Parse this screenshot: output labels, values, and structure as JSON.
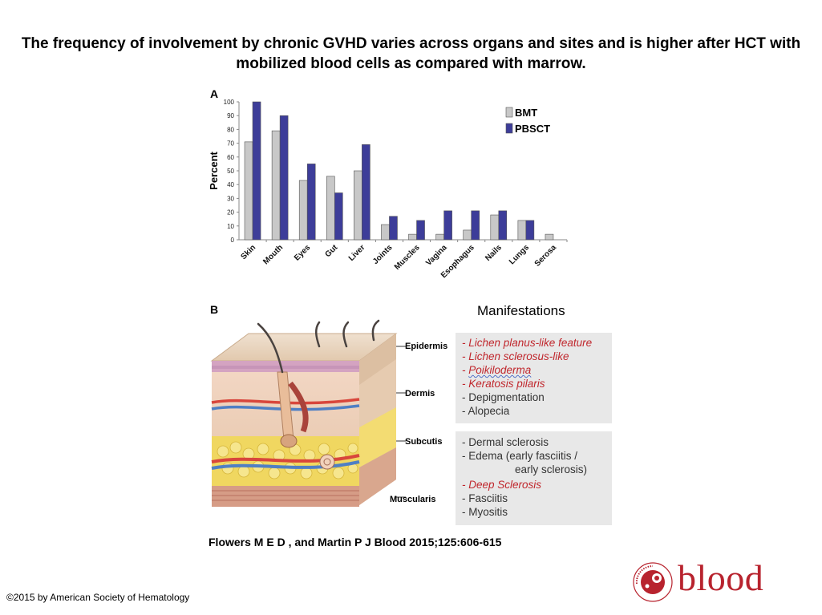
{
  "title": "The frequency of involvement by chronic GVHD varies across organs and sites and is higher after HCT with mobilized blood cells as compared with marrow.",
  "panel_a_label": "A",
  "panel_b_label": "B",
  "chart_data": {
    "type": "bar",
    "ylabel": "Percent",
    "xlabel": "",
    "ylim": [
      0,
      100
    ],
    "yticks": [
      0,
      10,
      20,
      30,
      40,
      50,
      60,
      70,
      80,
      90,
      100
    ],
    "categories": [
      "Skin",
      "Mouth",
      "Eyes",
      "Gut",
      "Liver",
      "Joints",
      "Muscles",
      "Vagina",
      "Esophagus",
      "Nails",
      "Lungs",
      "Serosa"
    ],
    "series": [
      {
        "name": "BMT",
        "color": "#c8c8c8",
        "values": [
          71,
          79,
          43,
          46,
          50,
          11,
          4,
          4,
          7,
          18,
          14,
          4
        ]
      },
      {
        "name": "PBSCT",
        "color": "#3d3d99",
        "values": [
          100,
          90,
          55,
          34,
          69,
          17,
          14,
          21,
          21,
          21,
          14,
          0
        ]
      }
    ],
    "legend_position": "top-right",
    "grid": false
  },
  "panel_b": {
    "manifestations_title": "Manifestations",
    "layers": [
      "Epidermis",
      "Dermis",
      "Subcutis",
      "Muscularis"
    ],
    "box1": [
      {
        "prefix": "- ",
        "text": "Lichen planus-like feature"
      },
      {
        "prefix": "- ",
        "text": "Lichen sclerosus-like"
      },
      {
        "prefix": "- ",
        "text": "Poikiloderma"
      },
      {
        "prefix": "- ",
        "text": "Keratosis pilaris"
      },
      {
        "prefix": "- ",
        "text": "Depigmentation"
      },
      {
        "prefix": "- ",
        "text": "Alopecia"
      }
    ],
    "box2": [
      {
        "prefix": "- ",
        "text": "Dermal sclerosis"
      },
      {
        "prefix": "- ",
        "text": "Edema (early fasciitis /"
      },
      {
        "prefix": "",
        "text": "early sclerosis)"
      },
      {
        "prefix": "- ",
        "text": "Deep Sclerosis"
      },
      {
        "prefix": "- ",
        "text": "Fasciitis"
      },
      {
        "prefix": "- ",
        "text": "Myositis"
      }
    ]
  },
  "citation": "Flowers M E D , and Martin P J Blood 2015;125:606-615",
  "copyright": "©2015 by American Society of Hematology",
  "logo": {
    "word": "blood",
    "seal_text": "AMERICAN SOCIETY OF HEMATOLOGY"
  }
}
